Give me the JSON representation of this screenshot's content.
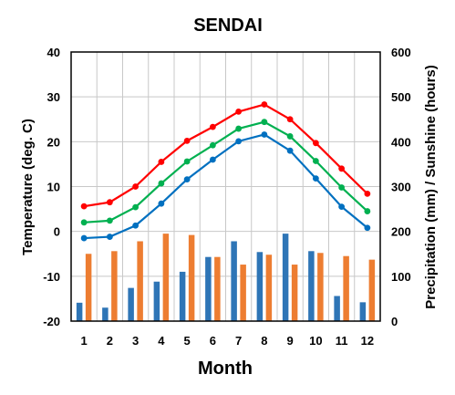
{
  "chart_data": {
    "type": "combo-bar-line",
    "title": "SENDAI",
    "xlabel": "Month",
    "ylabel_left": "Temperature (deg. C)",
    "ylabel_right": "Precipitation (mm) / Sunshine (hours)",
    "categories": [
      "1",
      "2",
      "3",
      "4",
      "5",
      "6",
      "7",
      "8",
      "9",
      "10",
      "11",
      "12"
    ],
    "ylim_left": [
      -20,
      40
    ],
    "yticks_left": [
      "-20",
      "-10",
      "0",
      "10",
      "20",
      "30",
      "40"
    ],
    "ylim_right": [
      0,
      600
    ],
    "yticks_right": [
      "0",
      "100",
      "200",
      "300",
      "400",
      "500",
      "600"
    ],
    "grid": true,
    "line_series": [
      {
        "color": "#ff0000",
        "axis": "left",
        "values": [
          5.6,
          6.5,
          10.0,
          15.5,
          20.2,
          23.3,
          26.7,
          28.3,
          25.0,
          19.7,
          14.0,
          8.4
        ]
      },
      {
        "color": "#00b050",
        "axis": "left",
        "values": [
          2.0,
          2.4,
          5.4,
          10.7,
          15.6,
          19.2,
          22.9,
          24.4,
          21.2,
          15.7,
          9.8,
          4.5
        ]
      },
      {
        "color": "#0070c0",
        "axis": "left",
        "values": [
          -1.5,
          -1.2,
          1.3,
          6.2,
          11.6,
          16.0,
          20.1,
          21.6,
          18.0,
          11.8,
          5.5,
          0.8
        ]
      }
    ],
    "bar_series": [
      {
        "color": "#2e75b6",
        "axis": "right",
        "values": [
          41,
          30,
          74,
          88,
          110,
          143,
          178,
          154,
          195,
          156,
          56,
          42
        ]
      },
      {
        "color": "#ed7d31",
        "axis": "right",
        "values": [
          150,
          156,
          178,
          195,
          192,
          143,
          126,
          148,
          126,
          152,
          145,
          137
        ]
      }
    ]
  }
}
